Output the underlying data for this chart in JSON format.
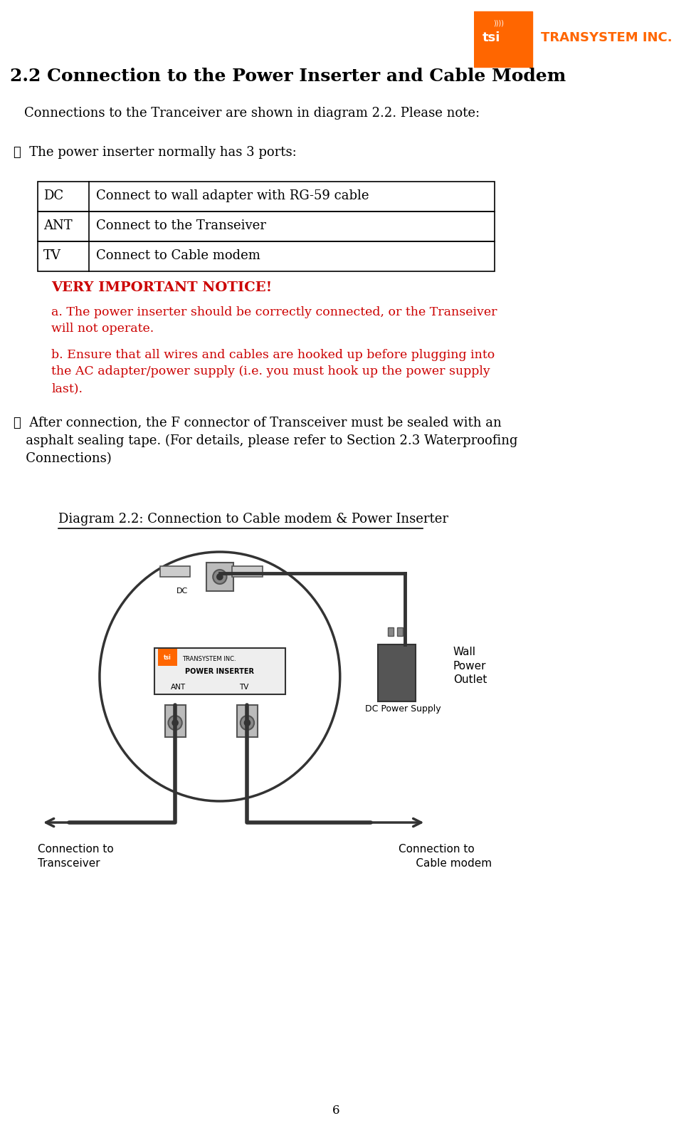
{
  "title": "2.2 Connection to the Power Inserter and Cable Modem",
  "subtitle": "Connections to the Tranceiver are shown in diagram 2.2. Please note:",
  "item1_header": "①  The power inserter normally has 3 ports:",
  "table_rows": [
    [
      "DC",
      "Connect to wall adapter with RG-59 cable"
    ],
    [
      "ANT",
      "Connect to the Transeiver"
    ],
    [
      "TV",
      "Connect to Cable modem"
    ]
  ],
  "notice_title": "VERY IMPORTANT NOTICE!",
  "notice_a": "a. The power inserter should be correctly connected, or the Transeiver\nwill not operate.",
  "notice_b": "b. Ensure that all wires and cables are hooked up before plugging into\nthe AC adapter/power supply (i.e. you must hook up the power supply\nlast).",
  "item2_text": "②  After connection, the F connector of Transceiver must be sealed with an\n   asphalt sealing tape. (For details, please refer to Section 2.3 Waterproofing\n   Connections)",
  "diagram_caption": "Diagram 2.2: Connection to Cable modem & Power Inserter",
  "page_number": "6",
  "logo_text": "TRANSYSTEM INC.",
  "notice_color": "#cc0000",
  "black": "#000000",
  "white": "#ffffff",
  "orange": "#FF6600",
  "bg": "#ffffff"
}
